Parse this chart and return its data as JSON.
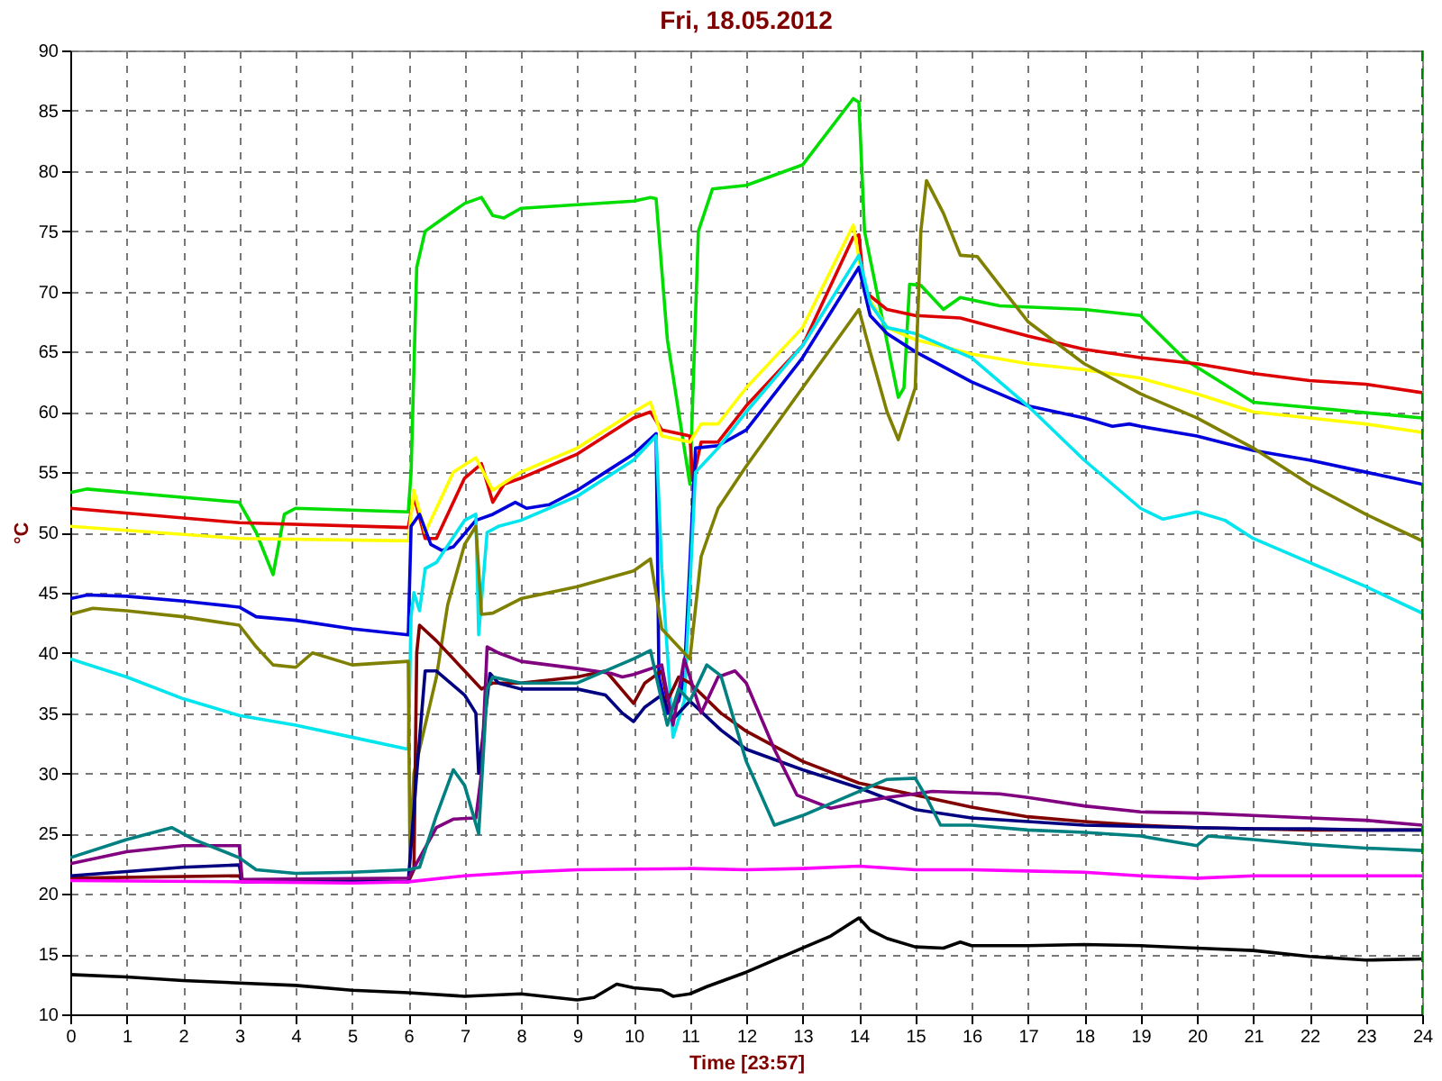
{
  "chart_data": {
    "type": "line",
    "title": "Fri, 18.05.2012",
    "xlabel": "Time [23:57]",
    "ylabel": "°C",
    "xlim": [
      0,
      24
    ],
    "xticks": [
      0,
      1,
      2,
      3,
      4,
      5,
      6,
      7,
      8,
      9,
      10,
      11,
      12,
      13,
      14,
      15,
      16,
      17,
      18,
      19,
      20,
      21,
      22,
      23,
      24
    ],
    "ylim": [
      10,
      90
    ],
    "yticks": [
      10,
      15,
      20,
      25,
      30,
      35,
      40,
      45,
      50,
      55,
      60,
      65,
      70,
      75,
      80,
      85,
      90
    ],
    "grid": true,
    "marker": "none",
    "line_style": "solid",
    "ref_lines": [
      {
        "axis": "x",
        "value": 24,
        "color": "#008000",
        "line_style": "dashed"
      }
    ],
    "series": [
      {
        "color": "#00dd00",
        "x": [
          0,
          0.3,
          3,
          3.3,
          3.6,
          3.8,
          4,
          6,
          6.05,
          6.15,
          6.3,
          6.6,
          7,
          7.3,
          7.5,
          7.7,
          8,
          9,
          10,
          10.3,
          10.4,
          10.6,
          11,
          11.15,
          11.4,
          12,
          13,
          13.9,
          14,
          14.1,
          14.7,
          14.8,
          14.9,
          15.1,
          15.5,
          15.8,
          16.5,
          18,
          19,
          19.8,
          21,
          24
        ],
        "values": [
          53.3,
          53.6,
          52.5,
          50,
          46.5,
          51.5,
          52,
          51.7,
          55,
          72,
          75,
          76,
          77.3,
          77.8,
          76.3,
          76.1,
          76.9,
          77.2,
          77.5,
          77.8,
          77.7,
          66,
          54,
          75,
          78.5,
          78.8,
          80.5,
          86,
          85.7,
          75,
          61.2,
          62,
          70.6,
          70.5,
          68.5,
          69.5,
          68.8,
          68.5,
          68,
          64.3,
          60.8,
          59.5
        ]
      },
      {
        "color": "#dd0000",
        "x": [
          0,
          3,
          6,
          6.1,
          6.3,
          6.5,
          7,
          7.3,
          7.5,
          7.7,
          8,
          9,
          10,
          10.3,
          10.5,
          11,
          11.05,
          11.2,
          11.5,
          12,
          13,
          13.9,
          14,
          14.1,
          14.5,
          15,
          15.8,
          17,
          18,
          19,
          20,
          21,
          22,
          23,
          24
        ],
        "values": [
          52,
          50.8,
          50.4,
          53,
          49.5,
          49.5,
          54.5,
          55.7,
          52.5,
          54,
          54.5,
          56.5,
          59.5,
          60,
          58.5,
          58,
          54.3,
          57.5,
          57.5,
          60.5,
          65.5,
          74.5,
          74.7,
          70,
          68.5,
          68,
          67.8,
          66.3,
          65.2,
          64.5,
          64,
          63.2,
          62.6,
          62.3,
          61.6
        ]
      },
      {
        "color": "#ffff00",
        "x": [
          0,
          3,
          6,
          6.1,
          6.3,
          6.8,
          7.2,
          7.5,
          8,
          9,
          10,
          10.3,
          10.5,
          11,
          11.2,
          11.5,
          12,
          13,
          13.9,
          14.1,
          14.5,
          15,
          16,
          17,
          18,
          19,
          20,
          21,
          22,
          23,
          24
        ],
        "values": [
          50.5,
          49.5,
          49.3,
          53.5,
          50,
          55,
          56.2,
          53.5,
          55,
          57,
          60,
          60.8,
          58,
          57.5,
          59,
          59,
          62,
          67,
          75.5,
          70,
          67,
          66,
          64.8,
          64,
          63.5,
          62.8,
          61.5,
          60,
          59.5,
          59,
          58.3
        ]
      },
      {
        "color": "#0000dd",
        "x": [
          0,
          0.3,
          1,
          2,
          3,
          3.3,
          4,
          5,
          6,
          6.05,
          6.2,
          6.4,
          6.6,
          6.8,
          7.2,
          7.5,
          7.9,
          8.1,
          8.5,
          9,
          9.5,
          10,
          10.4,
          10.45,
          10.6,
          10.8,
          10.9,
          11.1,
          11.5,
          12,
          13,
          14,
          14.2,
          14.5,
          15,
          16,
          17,
          18,
          18.5,
          18.8,
          19,
          20,
          21,
          22,
          23,
          24
        ],
        "values": [
          44.5,
          44.8,
          44.7,
          44.3,
          43.8,
          43,
          42.7,
          42,
          41.5,
          50.5,
          51.5,
          49,
          48.5,
          48.8,
          51,
          51.5,
          52.5,
          52,
          52.3,
          53.5,
          55,
          56.5,
          58.2,
          38,
          35,
          36,
          38,
          57,
          57.2,
          58.5,
          64.5,
          72,
          68,
          66.5,
          65,
          62.5,
          60.5,
          59.5,
          58.8,
          59,
          58.8,
          58,
          56.8,
          56,
          55,
          54
        ]
      },
      {
        "color": "#00e5ee",
        "x": [
          0,
          1,
          2,
          3,
          4,
          5,
          6,
          6.05,
          6.1,
          6.2,
          6.3,
          6.5,
          7,
          7.2,
          7.25,
          7.4,
          7.6,
          8,
          9,
          10,
          10.3,
          10.4,
          10.5,
          10.7,
          10.9,
          11.1,
          11.5,
          12,
          13,
          14,
          14.2,
          14.5,
          15,
          16,
          17,
          18,
          19,
          19.4,
          20,
          20.5,
          21,
          22,
          23,
          24
        ],
        "values": [
          39.5,
          38,
          36.2,
          34.8,
          34,
          33,
          32,
          43,
          45,
          43.5,
          47,
          47.5,
          51,
          51.5,
          41.5,
          50,
          50.5,
          51,
          53,
          56,
          57.5,
          58,
          47,
          33,
          36,
          55,
          57,
          60,
          65.5,
          73,
          69,
          67,
          66.5,
          64.5,
          60.5,
          56,
          52,
          51.1,
          51.7,
          51,
          49.5,
          47.5,
          45.5,
          43.3
        ]
      },
      {
        "color": "#808000",
        "x": [
          0,
          0.4,
          1,
          2,
          3,
          3.3,
          3.6,
          4,
          4.3,
          5,
          6,
          6.03,
          6.1,
          6.5,
          6.7,
          7,
          7.2,
          7.3,
          7.5,
          8,
          9,
          10,
          10.3,
          10.5,
          11,
          11.2,
          11.5,
          12,
          13,
          14,
          14.2,
          14.5,
          14.7,
          15,
          15.1,
          15.2,
          15.5,
          15.8,
          16.1,
          16.5,
          17,
          18,
          19,
          20,
          21,
          22,
          23,
          24
        ],
        "values": [
          43.2,
          43.7,
          43.5,
          43,
          42.3,
          40.5,
          39,
          38.8,
          40,
          39,
          39.3,
          23,
          30,
          38,
          44,
          49,
          50.5,
          43.2,
          43.3,
          44.5,
          45.5,
          46.8,
          47.8,
          42,
          39.5,
          48,
          52,
          55.5,
          62,
          68.5,
          65,
          60,
          57.7,
          62,
          75,
          79.2,
          76.5,
          73,
          72.9,
          70.5,
          67.5,
          64,
          61.5,
          59.5,
          57,
          54,
          51.5,
          49.3
        ]
      },
      {
        "color": "#800000",
        "x": [
          0,
          3,
          3.05,
          6,
          6.1,
          6.15,
          6.2,
          6.5,
          7,
          7.3,
          7.5,
          8,
          9,
          9.5,
          9.6,
          10,
          10.2,
          10.5,
          10.6,
          10.8,
          11,
          11.55,
          12,
          13,
          14,
          15,
          16,
          17,
          18,
          19,
          20,
          21,
          22,
          23,
          24
        ],
        "values": [
          21.3,
          21.5,
          21,
          21,
          22,
          40,
          42.3,
          41,
          38.5,
          37,
          37.5,
          37.5,
          38,
          38.5,
          38,
          35.8,
          37.5,
          38.5,
          36,
          38,
          37.5,
          35,
          33.5,
          31,
          29.2,
          28.2,
          27.2,
          26.4,
          26,
          25.7,
          25.5,
          25.4,
          25.3,
          25.3,
          25.3
        ]
      },
      {
        "color": "#000080",
        "x": [
          0,
          2,
          3,
          3.05,
          6,
          6.15,
          6.3,
          6.5,
          7,
          7.2,
          7.25,
          7.45,
          7.6,
          8,
          9,
          9.5,
          9.8,
          10,
          10.2,
          10.5,
          10.7,
          11,
          11.55,
          12,
          13,
          14,
          15,
          16,
          17,
          18,
          19,
          20,
          21,
          22,
          23,
          24
        ],
        "values": [
          21.5,
          22.2,
          22.4,
          21,
          21,
          30,
          38.5,
          38.5,
          36.5,
          35,
          30,
          38.3,
          37.5,
          37,
          37,
          36.5,
          35,
          34.3,
          35.5,
          36.5,
          34.5,
          36,
          33.6,
          32,
          30.3,
          28.8,
          27,
          26.3,
          26,
          25.7,
          25.6,
          25.5,
          25.4,
          25.4,
          25.3,
          25.3
        ]
      },
      {
        "color": "#800080",
        "x": [
          0,
          1,
          2,
          3,
          3.05,
          6,
          6.5,
          6.8,
          7.2,
          7.3,
          7.4,
          7.6,
          8,
          9,
          9.6,
          9.8,
          10,
          10.5,
          10.7,
          10.9,
          11.2,
          11.5,
          11.8,
          12,
          12.5,
          12.9,
          13.5,
          14,
          14.5,
          15,
          15.3,
          16.5,
          17,
          18,
          19,
          20,
          21,
          22,
          23,
          24
        ],
        "values": [
          22.5,
          23.5,
          24,
          24,
          21.2,
          21.3,
          25.5,
          26.2,
          26.3,
          30,
          40.5,
          40,
          39.3,
          38.7,
          38.3,
          38,
          38.2,
          39,
          34,
          39.5,
          35,
          38,
          38.5,
          37.5,
          32,
          28.2,
          27.1,
          27.6,
          28,
          28.3,
          28.5,
          28.3,
          28,
          27.3,
          26.8,
          26.7,
          26.5,
          26.3,
          26.1,
          25.7
        ]
      },
      {
        "color": "#008080",
        "x": [
          0,
          1,
          1.8,
          2.2,
          3,
          3.3,
          4,
          5,
          6,
          6.2,
          6.5,
          6.8,
          7,
          7.25,
          7.4,
          7.5,
          8,
          9,
          10,
          10.3,
          10.5,
          10.6,
          10.8,
          11,
          11.3,
          11.55,
          12,
          12.5,
          13,
          14,
          14.5,
          15,
          15.2,
          15.45,
          16,
          17,
          18,
          19,
          20,
          20.2,
          21,
          22,
          23,
          24
        ],
        "values": [
          23,
          24.5,
          25.5,
          24.5,
          23,
          22,
          21.7,
          21.8,
          22,
          22.2,
          26.5,
          30.3,
          29,
          25,
          37,
          38,
          37.5,
          37.5,
          39.5,
          40.2,
          36,
          34,
          37,
          36,
          39,
          38.1,
          31,
          25.7,
          26.5,
          28.5,
          29.5,
          29.6,
          28,
          25.7,
          25.7,
          25.3,
          25.1,
          24.8,
          24,
          24.8,
          24.5,
          24.1,
          23.8,
          23.6
        ]
      },
      {
        "color": "#ff00ff",
        "x": [
          0,
          3,
          5,
          6,
          7,
          8,
          9,
          11,
          12,
          13,
          14,
          15,
          16,
          17,
          18,
          19,
          20,
          21,
          22,
          24
        ],
        "values": [
          21.1,
          21,
          20.9,
          21,
          21.5,
          21.8,
          22,
          22.1,
          22,
          22.1,
          22.3,
          22,
          22,
          21.9,
          21.8,
          21.5,
          21.3,
          21.5,
          21.5,
          21.5
        ]
      },
      {
        "color": "#000000",
        "x": [
          0,
          1,
          2,
          3,
          4,
          5,
          6,
          7,
          8,
          9,
          9.3,
          9.7,
          10,
          10.5,
          10.7,
          11,
          11.3,
          12,
          13,
          13.5,
          14,
          14.2,
          14.5,
          15,
          15.5,
          15.8,
          16,
          17,
          18,
          19,
          20,
          21,
          22,
          23,
          24
        ],
        "values": [
          13.3,
          13.1,
          12.8,
          12.6,
          12.4,
          12,
          11.8,
          11.5,
          11.7,
          11.2,
          11.4,
          12.5,
          12.2,
          12,
          11.5,
          11.7,
          12.3,
          13.5,
          15.5,
          16.5,
          18,
          17,
          16.3,
          15.6,
          15.5,
          16,
          15.7,
          15.7,
          15.8,
          15.7,
          15.5,
          15.3,
          14.8,
          14.5,
          14.6
        ]
      }
    ]
  }
}
